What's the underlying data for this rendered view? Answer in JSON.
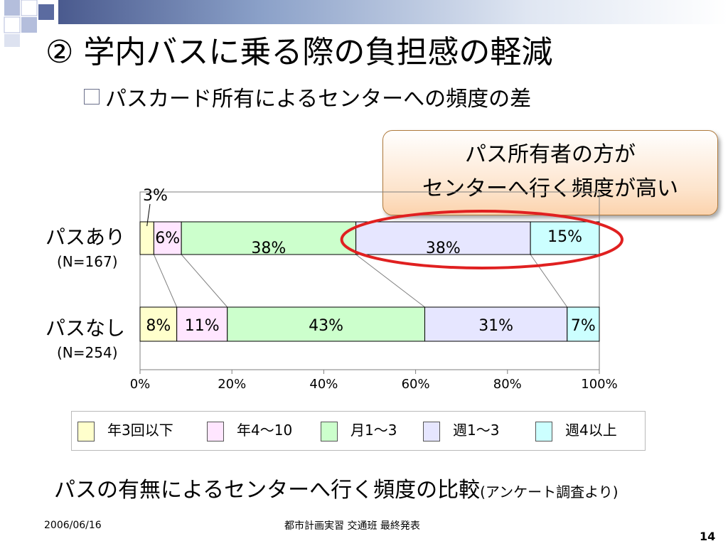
{
  "slide": {
    "title": "② 学内バスに乗る際の負担感の軽減",
    "subtitle": "パスカード所有によるセンターへの頻度の差",
    "callout_line1": "パス所有者の方が",
    "callout_line2": "センターへ行く頻度が高い",
    "caption_main": "パスの有無によるセンターへ行く頻度の比較",
    "caption_note": "(アンケート調査より)",
    "footer_date": "2006/06/16",
    "footer_center": "都市計画実習  交通班  最終発表",
    "page_number": "14",
    "colors": {
      "highlight_ellipse": "#e02020",
      "callout_fill": "#fbd3ad",
      "header_bar": "#4a5a8e"
    }
  },
  "chart_data": {
    "type": "bar",
    "orientation": "horizontal",
    "stacked": true,
    "percent": true,
    "categories": [
      {
        "label": "パスあり",
        "n": "(N=167)"
      },
      {
        "label": "パスなし",
        "n": "(N=254)"
      }
    ],
    "series": [
      {
        "name": "年3回以下",
        "color": "#ffffcc",
        "values": [
          3,
          8
        ],
        "labels": [
          "3%",
          "8%"
        ]
      },
      {
        "name": "年4～10",
        "color": "#ffe6ff",
        "values": [
          6,
          11
        ],
        "labels": [
          "6%",
          "11%"
        ]
      },
      {
        "name": "月1～3",
        "color": "#ccffcc",
        "values": [
          38,
          43
        ],
        "labels": [
          "38%",
          "43%"
        ]
      },
      {
        "name": "週1～3",
        "color": "#e6e6ff",
        "values": [
          38,
          31
        ],
        "labels": [
          "38%",
          "31%"
        ]
      },
      {
        "name": "週4以上",
        "color": "#ccffff",
        "values": [
          15,
          7
        ],
        "labels": [
          "15%",
          "7%"
        ]
      }
    ],
    "xlim": [
      0,
      100
    ],
    "xticks": [
      "0%",
      "20%",
      "40%",
      "60%",
      "80%",
      "100%"
    ],
    "xlabel": "",
    "ylabel": "",
    "title": "",
    "legend": "bottom",
    "grid": false
  }
}
